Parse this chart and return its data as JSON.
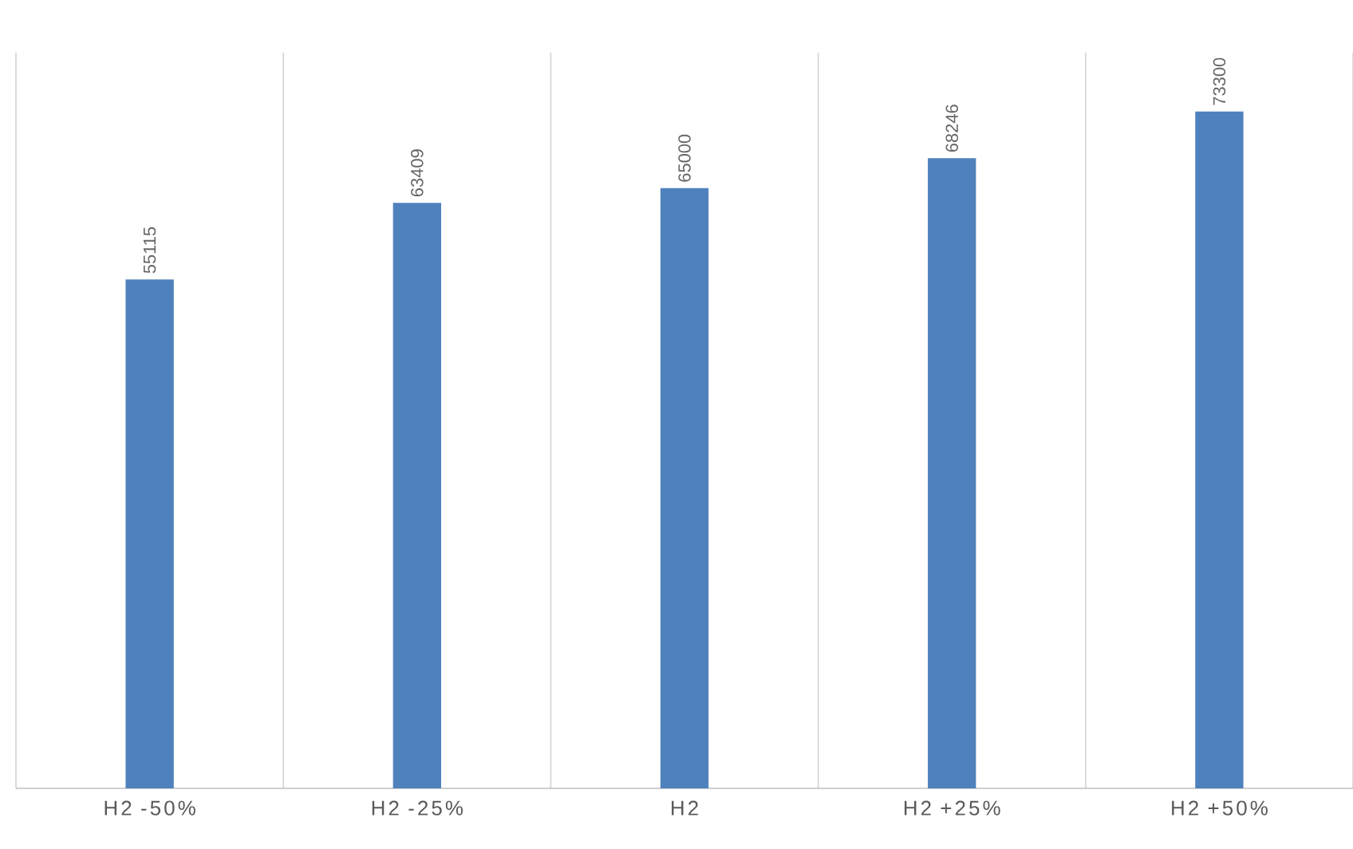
{
  "chart_data": {
    "type": "bar",
    "categories": [
      "H2 -50%",
      "H2 -25%",
      "H2",
      "H2 +25%",
      "H2 +50%"
    ],
    "values": [
      55115,
      63409,
      65000,
      68246,
      73300
    ],
    "color": "#4f81bd",
    "data_labels": true,
    "grid": "x",
    "tick_labels": "x"
  }
}
